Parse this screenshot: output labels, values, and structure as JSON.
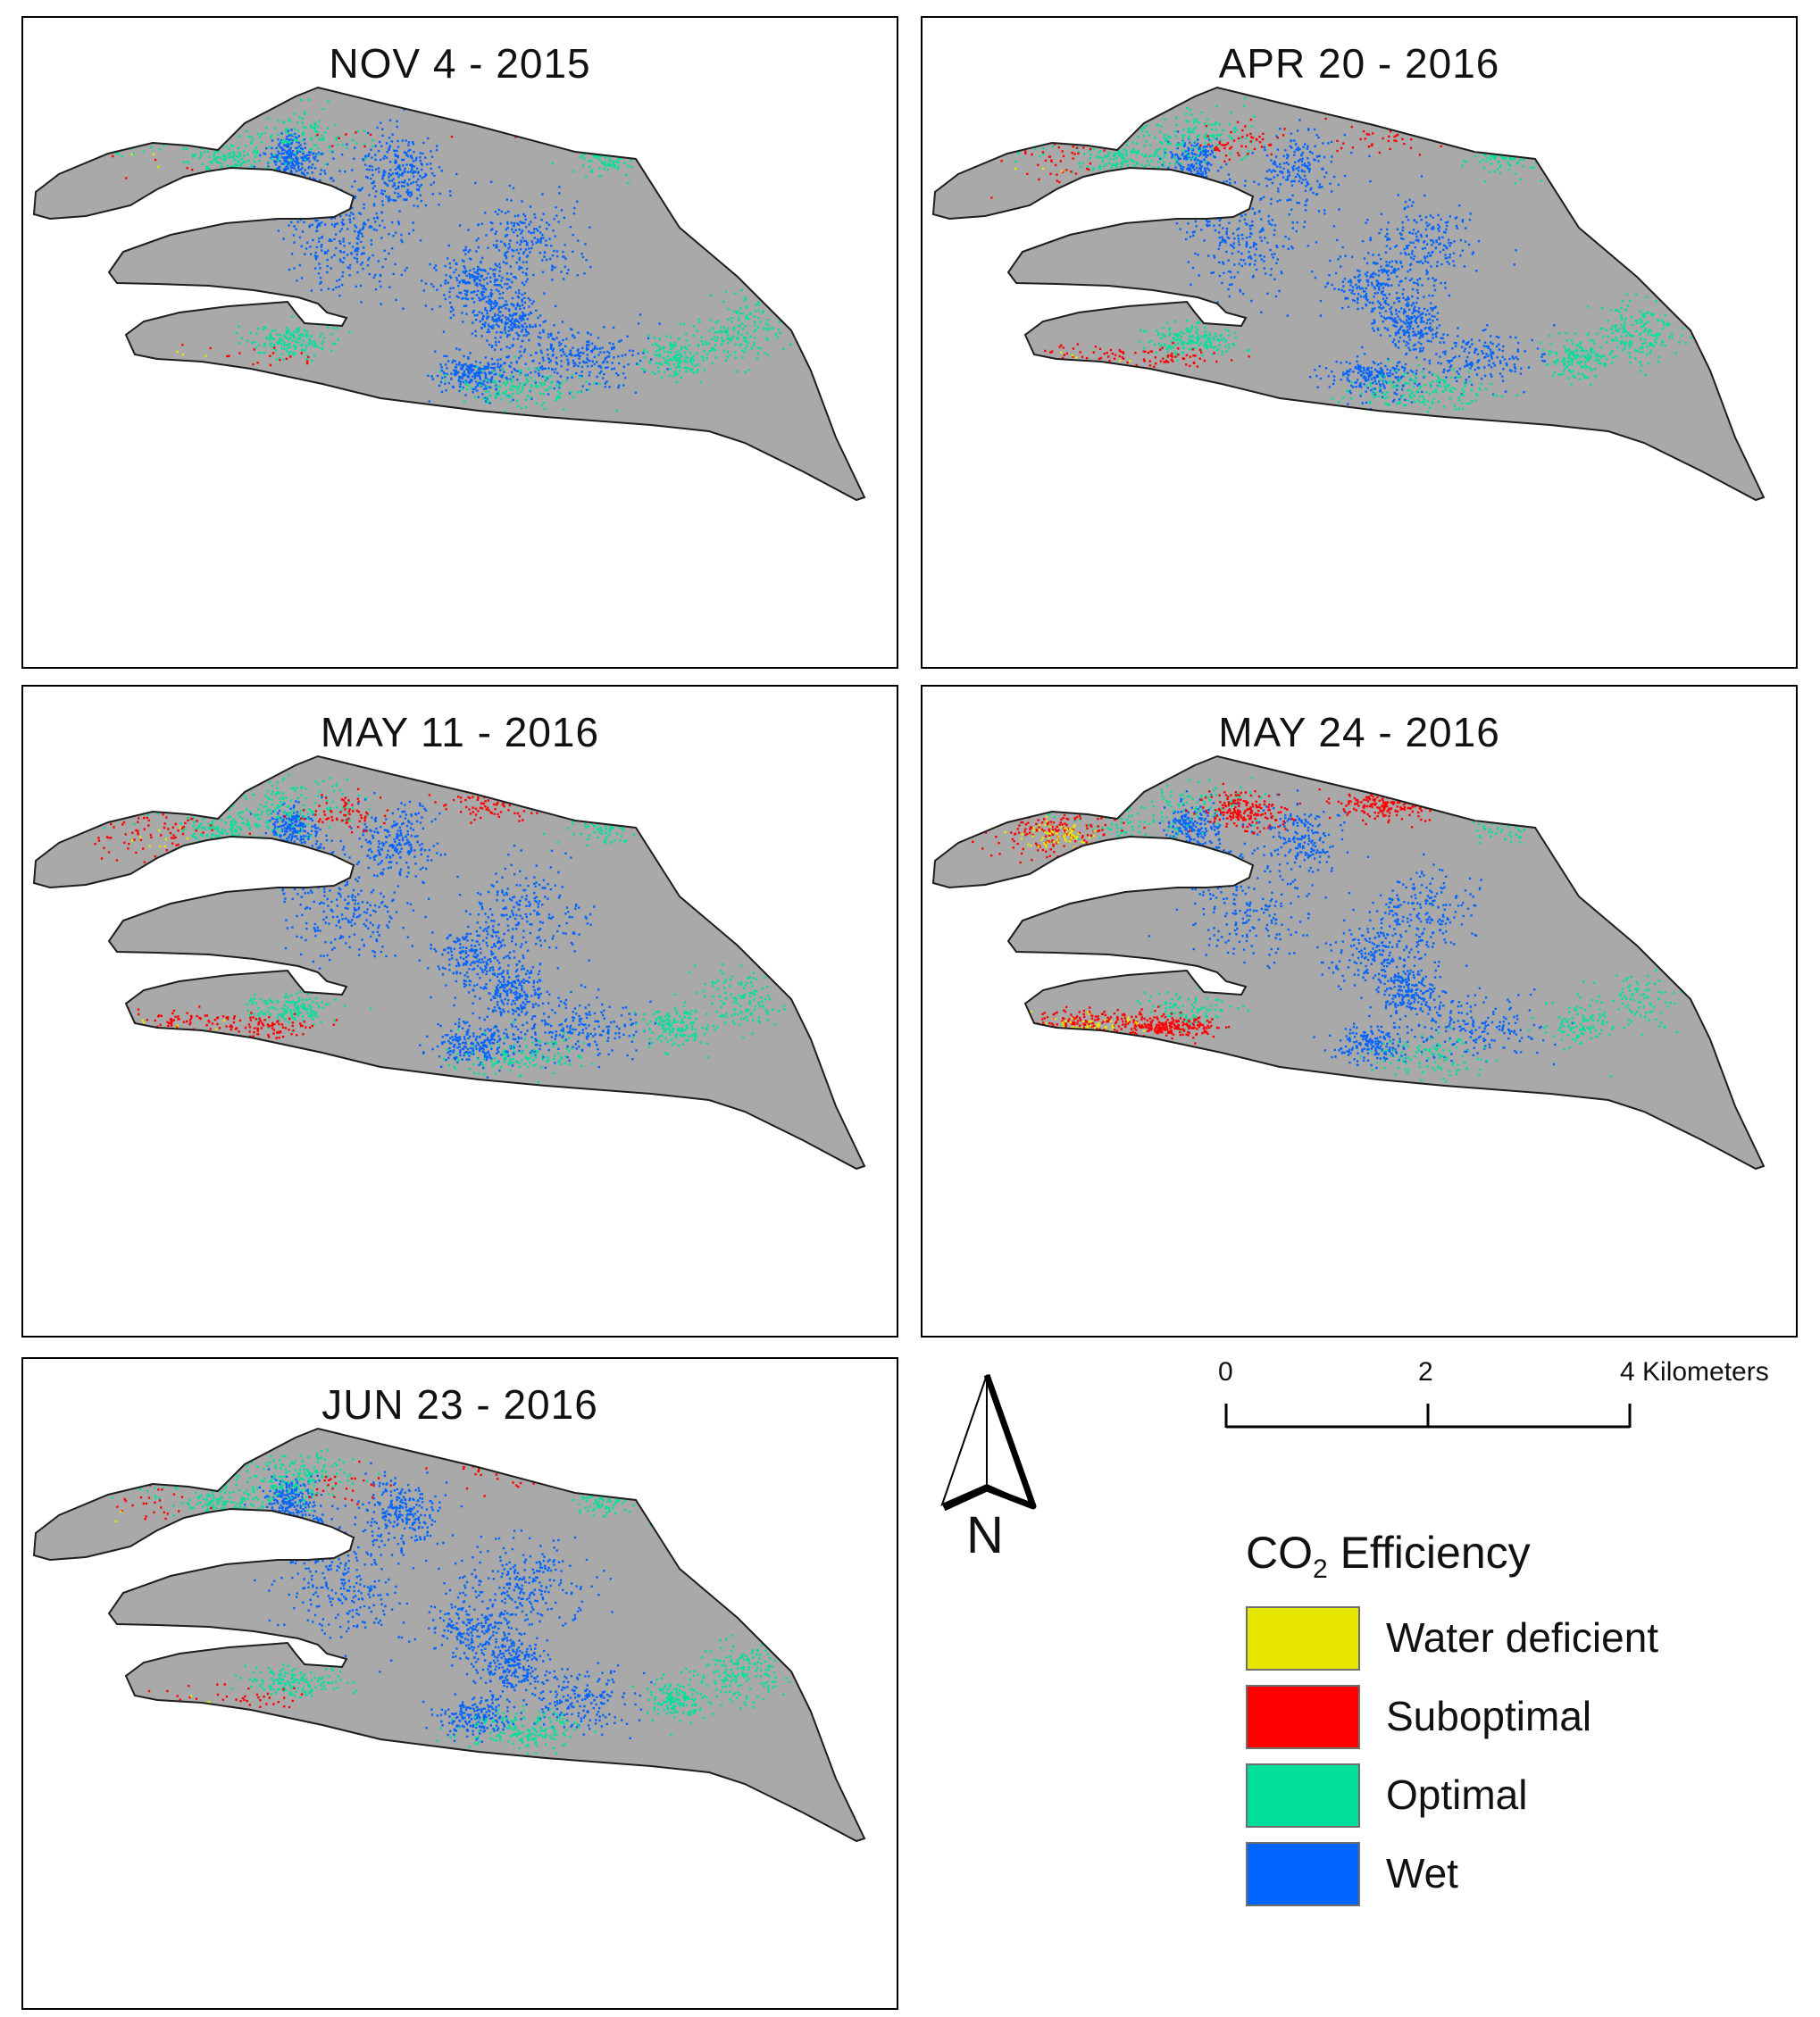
{
  "panels": [
    {
      "title": "NOV 4 - 2015",
      "seed": 11,
      "counts": {
        "wet": 2200,
        "optimal": 1300,
        "suboptimal": 40,
        "water_deficient": 6
      }
    },
    {
      "title": "APR 20 - 2016",
      "seed": 23,
      "counts": {
        "wet": 1800,
        "optimal": 1500,
        "suboptimal": 260,
        "water_deficient": 12
      }
    },
    {
      "title": "MAY 11 - 2016",
      "seed": 37,
      "counts": {
        "wet": 1900,
        "optimal": 1300,
        "suboptimal": 420,
        "water_deficient": 20
      }
    },
    {
      "title": "MAY 24 - 2016",
      "seed": 53,
      "counts": {
        "wet": 1700,
        "optimal": 900,
        "suboptimal": 950,
        "water_deficient": 140
      }
    },
    {
      "title": "JUN 23 - 2016",
      "seed": 71,
      "counts": {
        "wet": 2000,
        "optimal": 1500,
        "suboptimal": 120,
        "water_deficient": 8
      }
    }
  ],
  "north_arrow": {
    "label": "N",
    "icon": "north-arrow-icon"
  },
  "scale_bar": {
    "labels": [
      "0",
      "2",
      "4 Kilometers"
    ],
    "ticks_km": [
      0,
      2,
      4
    ]
  },
  "legend": {
    "title_prefix": "CO",
    "title_sub": "2",
    "title_suffix": " Efficiency",
    "items": [
      {
        "label": "Water deficient",
        "color": "#e6e600",
        "key": "water_deficient"
      },
      {
        "label": "Suboptimal",
        "color": "#ff0000",
        "key": "suboptimal"
      },
      {
        "label": "Optimal",
        "color": "#00e09b",
        "key": "optimal"
      },
      {
        "label": "Wet",
        "color": "#0064ff",
        "key": "wet"
      }
    ]
  },
  "colors": {
    "land": "#a9a9a9",
    "outline": "#1e1e1e",
    "frame": "#000000",
    "background": "#ffffff"
  }
}
